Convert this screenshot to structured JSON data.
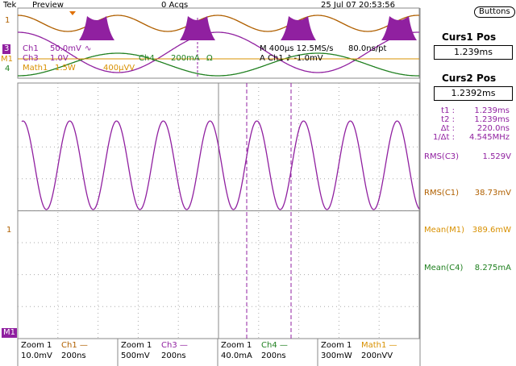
{
  "status_bar": {
    "brand": "Tek",
    "mode": "Preview",
    "acqs": "0 Acqs",
    "datetime": "25 Jul 07 20:53:56"
  },
  "overview": {
    "ch1_label": "Ch1",
    "ch1_scale": "50.0mV",
    "ch1_coupling": "∿",
    "ch3_label": "Ch3",
    "ch3_scale": "1.0V",
    "ch4_label": "Ch4",
    "ch4_scale": "200mA",
    "ch4_term": "Ω",
    "math_label": "Math1",
    "math_scale": "1.5W",
    "math_extra": "400μVV",
    "timebase": "M 400μs 12.5MS/s",
    "resolution": "80.0ns/pt",
    "trigger": "A Ch1 ♪ -1.0mV"
  },
  "markers": {
    "ov_ch1": "1",
    "ov_ch3": "3",
    "ov_math": "M1",
    "ov_ch4": "4",
    "main_ch1": "1",
    "main_math": "M1"
  },
  "side_panel": {
    "button": "Buttons",
    "curs1_title": "Curs1 Pos",
    "curs1_value": "1.239ms",
    "curs2_title": "Curs2 Pos",
    "curs2_value": "1.2392ms",
    "readouts": [
      [
        "t1 :",
        "1.239ms"
      ],
      [
        "t2 :",
        "1.239ms"
      ],
      [
        "Δt :",
        "220.0ns"
      ],
      [
        "1/Δt :",
        "4.545MHz"
      ]
    ],
    "measurements": [
      [
        "RMS(C3)",
        "1.529V"
      ],
      [
        "RMS(C1)",
        "38.73mV"
      ],
      [
        "Mean(M1)",
        "389.6mW"
      ],
      [
        "Mean(C4)",
        "8.275mA"
      ]
    ]
  },
  "bottom": [
    [
      "Zoom 1",
      "Ch1 —",
      "10.0mV",
      "200ns"
    ],
    [
      "Zoom 1",
      "Ch3 —",
      "500mV",
      "200ns"
    ],
    [
      "Zoom 1",
      "Ch4 —",
      "40.0mA",
      "200ns"
    ],
    [
      "Zoom 1",
      "Math1 —",
      "300mW",
      "200nVV"
    ]
  ]
}
